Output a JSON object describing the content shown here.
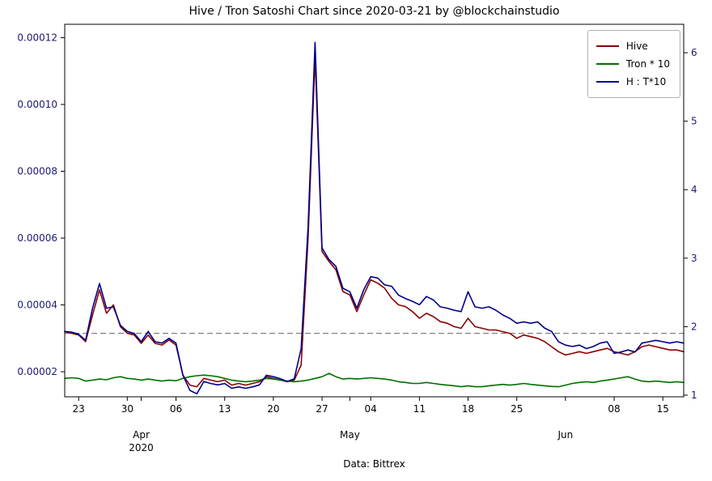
{
  "title": "Hive / Tron Satoshi Chart since 2020-03-21 by @blockchainstudio",
  "footer": "Data: Bittrex",
  "colors": {
    "background": "#ffffff",
    "plot_border": "#000000",
    "y_tick_label": "#191970",
    "x_tick_label": "#000000",
    "reference_line": "#808080"
  },
  "chart_data": {
    "type": "line",
    "title": "Hive / Tron Satoshi Chart since 2020-03-21 by @blockchainstudio",
    "source_note": "Data: Bittrex",
    "x_start_date": "2020-03-21",
    "x_end_date": "2020-06-18",
    "frequency": "daily",
    "n_points": 90,
    "grid": false,
    "legend_position": "upper right",
    "series": [
      {
        "name": "Hive",
        "color": "#8b0000",
        "axis": "left",
        "values": [
          3.2,
          3.15,
          3.1,
          2.9,
          3.7,
          4.45,
          3.75,
          4.0,
          3.35,
          3.15,
          3.1,
          2.85,
          3.1,
          2.85,
          2.8,
          2.95,
          2.8,
          1.9,
          1.6,
          1.55,
          1.8,
          1.75,
          1.7,
          1.75,
          1.6,
          1.65,
          1.6,
          1.65,
          1.7,
          1.85,
          1.8,
          1.75,
          1.7,
          1.75,
          2.2,
          6.0,
          11.45,
          5.6,
          5.3,
          5.05,
          4.4,
          4.3,
          3.8,
          4.3,
          4.75,
          4.65,
          4.5,
          4.2,
          4.0,
          3.95,
          3.8,
          3.6,
          3.75,
          3.65,
          3.5,
          3.45,
          3.35,
          3.3,
          3.6,
          3.35,
          3.3,
          3.25,
          3.25,
          3.2,
          3.15,
          3.0,
          3.1,
          3.05,
          3.0,
          2.9,
          2.75,
          2.6,
          2.5,
          2.55,
          2.6,
          2.55,
          2.6,
          2.65,
          2.7,
          2.6,
          2.55,
          2.5,
          2.6,
          2.75,
          2.8,
          2.75,
          2.7,
          2.65,
          2.65,
          2.6
        ]
      },
      {
        "name": "Tron * 10",
        "color": "#007000",
        "axis": "left",
        "values": [
          1.8,
          1.82,
          1.8,
          1.72,
          1.75,
          1.78,
          1.76,
          1.82,
          1.85,
          1.8,
          1.78,
          1.75,
          1.78,
          1.75,
          1.72,
          1.75,
          1.73,
          1.8,
          1.85,
          1.88,
          1.9,
          1.88,
          1.85,
          1.8,
          1.75,
          1.72,
          1.7,
          1.72,
          1.75,
          1.8,
          1.78,
          1.75,
          1.72,
          1.7,
          1.72,
          1.75,
          1.8,
          1.85,
          1.95,
          1.85,
          1.78,
          1.8,
          1.78,
          1.8,
          1.82,
          1.8,
          1.78,
          1.75,
          1.7,
          1.68,
          1.65,
          1.65,
          1.68,
          1.65,
          1.62,
          1.6,
          1.58,
          1.55,
          1.58,
          1.55,
          1.55,
          1.58,
          1.6,
          1.62,
          1.6,
          1.62,
          1.65,
          1.62,
          1.6,
          1.58,
          1.56,
          1.55,
          1.6,
          1.65,
          1.68,
          1.7,
          1.68,
          1.72,
          1.75,
          1.78,
          1.82,
          1.85,
          1.78,
          1.72,
          1.7,
          1.72,
          1.7,
          1.68,
          1.7,
          1.68
        ]
      },
      {
        "name": "H : T*10",
        "color": "#00008b",
        "axis": "right",
        "values": [
          1.93,
          1.92,
          1.89,
          1.8,
          2.27,
          2.63,
          2.27,
          2.29,
          2.02,
          1.93,
          1.9,
          1.78,
          1.93,
          1.78,
          1.76,
          1.83,
          1.76,
          1.29,
          1.07,
          1.02,
          1.2,
          1.17,
          1.15,
          1.17,
          1.1,
          1.12,
          1.1,
          1.12,
          1.15,
          1.29,
          1.27,
          1.24,
          1.2,
          1.24,
          1.68,
          3.46,
          6.15,
          3.15,
          2.98,
          2.88,
          2.56,
          2.51,
          2.27,
          2.54,
          2.73,
          2.71,
          2.61,
          2.59,
          2.46,
          2.41,
          2.37,
          2.32,
          2.44,
          2.39,
          2.29,
          2.27,
          2.24,
          2.22,
          2.51,
          2.29,
          2.27,
          2.29,
          2.24,
          2.17,
          2.12,
          2.05,
          2.07,
          2.05,
          2.07,
          1.98,
          1.93,
          1.78,
          1.73,
          1.71,
          1.73,
          1.68,
          1.71,
          1.76,
          1.78,
          1.61,
          1.63,
          1.66,
          1.63,
          1.76,
          1.78,
          1.8,
          1.78,
          1.76,
          1.78,
          1.76
        ]
      }
    ],
    "left_axis": {
      "scale": 1e-05,
      "range": [
        1.25,
        12.4
      ],
      "ticks": [
        2,
        4,
        6,
        8,
        10,
        12
      ],
      "tick_labels": [
        "0.00002",
        "0.00004",
        "0.00006",
        "0.00008",
        "0.00010",
        "0.00012"
      ],
      "label_color": "#191970"
    },
    "right_axis": {
      "range": [
        0.976,
        6.415
      ],
      "ticks": [
        1,
        2,
        3,
        4,
        5,
        6
      ],
      "tick_labels": [
        "1",
        "2",
        "3",
        "4",
        "5",
        "6"
      ],
      "label_color": "#191970"
    },
    "x_ticks": [
      {
        "i": 2,
        "day": "23"
      },
      {
        "i": 9,
        "day": "30"
      },
      {
        "i": 11,
        "day": "",
        "month": "Apr",
        "year": "2020"
      },
      {
        "i": 16,
        "day": "06"
      },
      {
        "i": 23,
        "day": "13"
      },
      {
        "i": 30,
        "day": "20"
      },
      {
        "i": 37,
        "day": "27"
      },
      {
        "i": 41,
        "day": "",
        "month": "May"
      },
      {
        "i": 44,
        "day": "04"
      },
      {
        "i": 51,
        "day": "11"
      },
      {
        "i": 58,
        "day": "18"
      },
      {
        "i": 65,
        "day": "25"
      },
      {
        "i": 72,
        "day": "",
        "month": "Jun"
      },
      {
        "i": 79,
        "day": "08"
      },
      {
        "i": 86,
        "day": "15"
      }
    ],
    "reference_line": {
      "value": 3.15,
      "axis": "left",
      "style": "dashed",
      "color": "#808080"
    },
    "legend": {
      "entries": [
        "Hive",
        "Tron * 10",
        "H : T*10"
      ]
    }
  }
}
